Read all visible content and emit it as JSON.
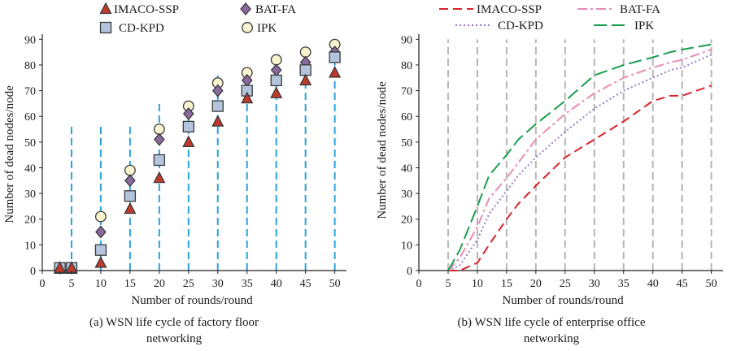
{
  "chart_data": [
    {
      "type": "scatter",
      "caption_line1": "(a) WSN life cycle of factory floor",
      "caption_line2": "networking",
      "xlabel": "Number of rounds/round",
      "ylabel": "Number of dead nodes/node",
      "xlim": [
        0,
        52
      ],
      "ylim": [
        0,
        92
      ],
      "xticks": [
        0,
        5,
        10,
        15,
        20,
        25,
        30,
        35,
        40,
        45,
        50
      ],
      "yticks": [
        0,
        10,
        20,
        30,
        40,
        50,
        60,
        70,
        80,
        90
      ],
      "grid_color": "#29a3dc",
      "grid_x": [
        5,
        10,
        15,
        20,
        25,
        30,
        35,
        40,
        45,
        50
      ],
      "grid_top": [
        56,
        56,
        56,
        66,
        66,
        76,
        78,
        78,
        88,
        88
      ],
      "x": [
        3,
        5,
        10,
        15,
        20,
        25,
        30,
        35,
        40,
        45,
        50
      ],
      "series": [
        {
          "name": "IMACO-SSP",
          "marker": "triangle",
          "color": "#c0392b",
          "values": [
            1,
            1,
            3,
            24,
            36,
            50,
            58,
            67,
            69,
            74,
            77
          ]
        },
        {
          "name": "BAT-FA",
          "marker": "diamond",
          "color": "#8a6a9e",
          "values": [
            1,
            1,
            15,
            35,
            51,
            61,
            70,
            74,
            78,
            81,
            85
          ]
        },
        {
          "name": "CD-KPD",
          "marker": "square",
          "color": "#b3c5dc",
          "values": [
            1,
            1,
            8,
            29,
            43,
            56,
            64,
            70,
            74,
            78,
            83
          ]
        },
        {
          "name": "IPK",
          "marker": "circle",
          "color": "#f7f4cf",
          "values": [
            1,
            1,
            21,
            39,
            55,
            64,
            73,
            77,
            82,
            85,
            88
          ]
        }
      ]
    },
    {
      "type": "line",
      "caption_line1": "(b) WSN life cycle of enterprise office",
      "caption_line2": "networking",
      "xlabel": "Number of rounds/round",
      "ylabel": "Number of dead nodes/node",
      "xlim": [
        0,
        52
      ],
      "ylim": [
        0,
        92
      ],
      "xticks": [
        0,
        5,
        10,
        15,
        20,
        25,
        30,
        35,
        40,
        45,
        50
      ],
      "yticks": [
        0,
        10,
        20,
        30,
        40,
        50,
        60,
        70,
        80,
        90
      ],
      "grid_color": "#b5b5b5",
      "grid_x": [
        5,
        10,
        15,
        20,
        25,
        30,
        35,
        40,
        45,
        50
      ],
      "grid_top": [
        90,
        90,
        90,
        90,
        90,
        90,
        90,
        90,
        90,
        90
      ],
      "x": [
        5,
        7,
        10,
        12,
        15,
        17,
        20,
        25,
        30,
        35,
        40,
        43,
        45,
        50
      ],
      "series": [
        {
          "name": "IMACO-SSP",
          "style": "dashed",
          "color": "#d9232a",
          "values": [
            0,
            0,
            3,
            10,
            20,
            26,
            33,
            44,
            51,
            58,
            66,
            68,
            68,
            72
          ]
        },
        {
          "name": "BAT-FA",
          "style": "dashdot",
          "color": "#e98bb3",
          "values": [
            0,
            5,
            17,
            28,
            36,
            42,
            51,
            61,
            69,
            75,
            79,
            81,
            82,
            86
          ]
        },
        {
          "name": "CD-KPD",
          "style": "dotted",
          "color": "#9b7bc8",
          "values": [
            0,
            2,
            12,
            22,
            31,
            37,
            44,
            54,
            63,
            70,
            75,
            78,
            79,
            84
          ]
        },
        {
          "name": "IPK",
          "style": "longdash",
          "color": "#1a9e50",
          "values": [
            0,
            8,
            25,
            37,
            45,
            51,
            57,
            66,
            76,
            80,
            83,
            85,
            86,
            88
          ]
        }
      ]
    }
  ]
}
